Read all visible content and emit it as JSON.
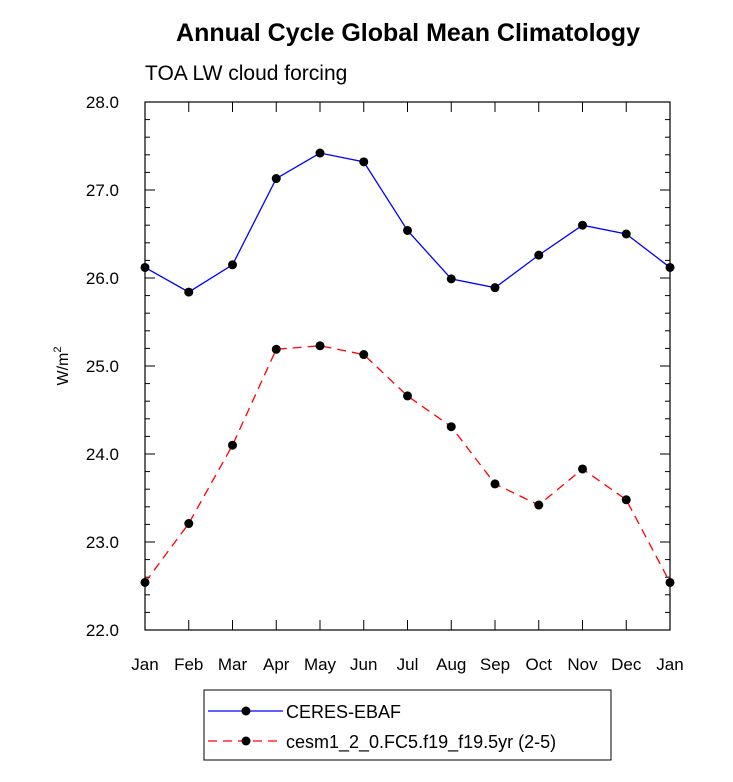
{
  "chart_data": {
    "type": "line",
    "title": "Annual Cycle Global Mean Climatology",
    "subtitle": "TOA LW cloud forcing",
    "xlabel": "",
    "ylabel": "W/m",
    "ylabel_superscript": "2",
    "categories": [
      "Jan",
      "Feb",
      "Mar",
      "Apr",
      "May",
      "Jun",
      "Jul",
      "Aug",
      "Sep",
      "Oct",
      "Nov",
      "Dec",
      "Jan"
    ],
    "ylim": [
      22.0,
      28.0
    ],
    "yticks": [
      "22.0",
      "23.0",
      "24.0",
      "25.0",
      "26.0",
      "27.0",
      "28.0"
    ],
    "grid": false,
    "legend_position": "bottom",
    "series": [
      {
        "name": "CERES-EBAF",
        "color": "#0000ff",
        "style": "solid",
        "values": [
          26.12,
          25.84,
          26.15,
          27.13,
          27.42,
          27.32,
          26.54,
          25.99,
          25.89,
          26.26,
          26.6,
          26.5,
          26.12
        ]
      },
      {
        "name": "cesm1_2_0.FC5.f19_f19.5yr (2-5)",
        "color": "#ff0000",
        "style": "dashed",
        "values": [
          22.54,
          23.21,
          24.1,
          25.19,
          25.23,
          25.13,
          24.66,
          24.31,
          23.66,
          23.42,
          23.83,
          23.48,
          22.54
        ]
      }
    ]
  }
}
